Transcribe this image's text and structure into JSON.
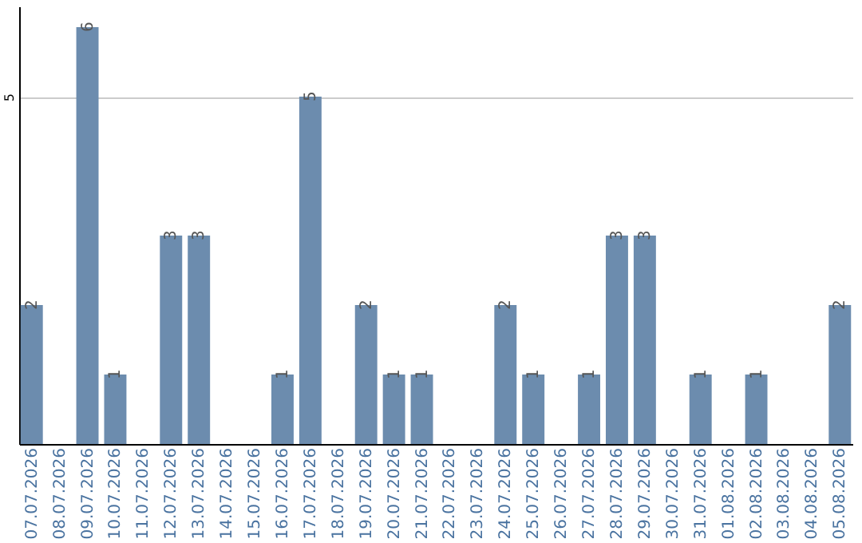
{
  "chart_data": {
    "type": "bar",
    "categories": [
      "07.07.2026",
      "08.07.2026",
      "09.07.2026",
      "10.07.2026",
      "11.07.2026",
      "12.07.2026",
      "13.07.2026",
      "14.07.2026",
      "15.07.2026",
      "16.07.2026",
      "17.07.2026",
      "18.07.2026",
      "19.07.2026",
      "20.07.2026",
      "21.07.2026",
      "22.07.2026",
      "23.07.2026",
      "24.07.2026",
      "25.07.2026",
      "26.07.2026",
      "27.07.2026",
      "28.07.2026",
      "29.07.2026",
      "30.07.2026",
      "31.07.2026",
      "01.08.2026",
      "02.08.2026",
      "03.08.2026",
      "04.08.2026",
      "05.08.2026"
    ],
    "values": [
      2,
      0,
      6,
      1,
      0,
      3,
      3,
      0,
      0,
      1,
      5,
      0,
      2,
      1,
      1,
      0,
      0,
      2,
      1,
      0,
      1,
      3,
      3,
      0,
      1,
      0,
      1,
      0,
      0,
      2
    ],
    "value_labels": [
      "2",
      null,
      "6",
      "1",
      null,
      "3",
      "3",
      null,
      null,
      "1",
      "5",
      null,
      "2",
      "1",
      "1",
      null,
      null,
      "2",
      "1",
      null,
      "1",
      "3",
      "3",
      null,
      "1",
      null,
      "1",
      null,
      null,
      "2"
    ],
    "color": "#6c8cae",
    "ylim": [
      0,
      6.3
    ],
    "yticks": [
      5
    ],
    "grid": "y"
  }
}
